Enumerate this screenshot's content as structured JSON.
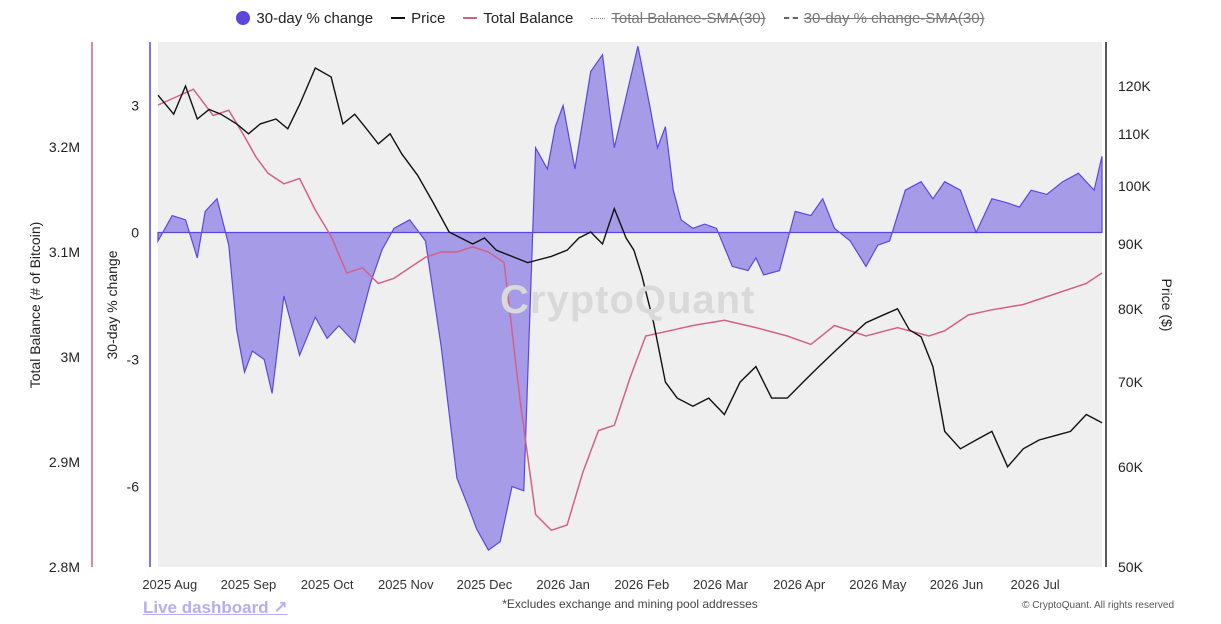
{
  "legend": [
    {
      "label": "30-day % change",
      "marker": "dot",
      "color": "#5b47e0",
      "active": true
    },
    {
      "label": "Price",
      "marker": "line",
      "color": "#111111",
      "active": true
    },
    {
      "label": "Total Balance",
      "marker": "line",
      "color": "#d4608a",
      "active": true
    },
    {
      "label": "Total Balance-SMA(30)",
      "marker": "dotted",
      "color": "#888888",
      "active": false
    },
    {
      "label": "30-day % change-SMA(30)",
      "marker": "dashed",
      "color": "#666666",
      "active": false
    }
  ],
  "footer": {
    "live_dashboard": "Live dashboard ↗",
    "note": "*Excludes exchange and mining pool addresses",
    "copyright": "© CryptoQuant. All rights reserved"
  },
  "watermark": "CryptoQuant",
  "chart_data": {
    "type": "line",
    "grid": false,
    "x_ticks": [
      "2025 Aug",
      "2025 Sep",
      "2025 Oct",
      "2025 Nov",
      "2025 Dec",
      "2026 Jan",
      "2026 Feb",
      "2026 Mar",
      "2026 Apr",
      "2026 May",
      "2026 Jun",
      "2026 Jul"
    ],
    "axes": {
      "balance": {
        "label": "Total Balance (# of Bitcoin)",
        "range": [
          2800000,
          3300000
        ],
        "ticks": [
          "2.8M",
          "2.9M",
          "3M",
          "3.1M",
          "3.2M"
        ],
        "tick_values": [
          2800000,
          2900000,
          3000000,
          3100000,
          3200000
        ]
      },
      "pct": {
        "label": "30-day % change",
        "range": [
          -7.9,
          4.5
        ],
        "ticks": [
          "-6",
          "-3",
          "0",
          "3"
        ],
        "tick_values": [
          -6,
          -3,
          0,
          3
        ]
      },
      "price": {
        "label": "Price ($)",
        "scale": "log",
        "range": [
          50000,
          130000
        ],
        "ticks": [
          "50K",
          "60K",
          "70K",
          "80K",
          "90K",
          "100K",
          "110K",
          "120K"
        ],
        "tick_values": [
          50000,
          60000,
          70000,
          80000,
          90000,
          100000,
          110000,
          120000
        ]
      }
    },
    "x_range": [
      0,
      12
    ],
    "series": [
      {
        "name": "30-day % change",
        "kind": "area",
        "color": "#5b47e0",
        "x": [
          0,
          0.18,
          0.35,
          0.5,
          0.6,
          0.75,
          0.9,
          1.0,
          1.1,
          1.2,
          1.35,
          1.45,
          1.6,
          1.8,
          2.0,
          2.15,
          2.3,
          2.5,
          2.7,
          2.85,
          3.0,
          3.2,
          3.4,
          3.6,
          3.8,
          3.95,
          4.05,
          4.2,
          4.35,
          4.5,
          4.65,
          4.8,
          4.95,
          5.05,
          5.15,
          5.3,
          5.5,
          5.65,
          5.8,
          5.95,
          6.1,
          6.25,
          6.35,
          6.45,
          6.55,
          6.65,
          6.8,
          6.95,
          7.1,
          7.3,
          7.5,
          7.6,
          7.7,
          7.9,
          8.1,
          8.3,
          8.45,
          8.6,
          8.8,
          9.0,
          9.15,
          9.3,
          9.5,
          9.7,
          9.85,
          10.0,
          10.2,
          10.4,
          10.6,
          10.8,
          10.95,
          11.1,
          11.3,
          11.5,
          11.7,
          11.9,
          12.0
        ],
        "y": [
          -0.2,
          0.4,
          0.3,
          -0.6,
          0.5,
          0.8,
          -0.3,
          -2.3,
          -3.3,
          -2.8,
          -3.0,
          -3.8,
          -1.5,
          -2.9,
          -2.0,
          -2.5,
          -2.2,
          -2.6,
          -1.2,
          -0.4,
          0.1,
          0.3,
          -0.2,
          -2.7,
          -5.8,
          -6.5,
          -7.0,
          -7.5,
          -7.3,
          -6.0,
          -6.1,
          2.0,
          1.5,
          2.5,
          3.0,
          1.5,
          3.8,
          4.2,
          2.0,
          3.2,
          4.4,
          3.0,
          2.0,
          2.5,
          1.0,
          0.3,
          0.1,
          0.2,
          0.1,
          -0.8,
          -0.9,
          -0.6,
          -1.0,
          -0.9,
          0.5,
          0.4,
          0.8,
          0.1,
          -0.2,
          -0.8,
          -0.3,
          -0.2,
          1.0,
          1.2,
          0.8,
          1.2,
          1.0,
          0.0,
          0.8,
          0.7,
          0.6,
          1.0,
          0.9,
          1.2,
          1.4,
          1.0,
          1.8
        ]
      },
      {
        "name": "Total Balance",
        "kind": "line",
        "axis": "balance",
        "color": "#d4608a",
        "x": [
          0,
          0.3,
          0.45,
          0.7,
          0.9,
          1.1,
          1.25,
          1.4,
          1.6,
          1.8,
          2.0,
          2.2,
          2.4,
          2.6,
          2.8,
          3.0,
          3.2,
          3.4,
          3.6,
          3.8,
          4.0,
          4.2,
          4.4,
          4.6,
          4.8,
          5.0,
          5.2,
          5.4,
          5.6,
          5.8,
          6.0,
          6.2,
          6.5,
          6.8,
          7.2,
          7.6,
          8.0,
          8.3,
          8.6,
          9.0,
          9.4,
          9.8,
          10.0,
          10.3,
          10.6,
          11.0,
          11.4,
          11.8,
          12.0
        ],
        "y": [
          3240000,
          3250000,
          3255000,
          3230000,
          3235000,
          3210000,
          3190000,
          3175000,
          3165000,
          3170000,
          3140000,
          3115000,
          3080000,
          3085000,
          3070000,
          3075000,
          3085000,
          3095000,
          3100000,
          3100000,
          3105000,
          3100000,
          3090000,
          2960000,
          2850000,
          2835000,
          2840000,
          2890000,
          2930000,
          2935000,
          2980000,
          3020000,
          3025000,
          3030000,
          3035000,
          3028000,
          3020000,
          3012000,
          3030000,
          3020000,
          3028000,
          3020000,
          3025000,
          3040000,
          3045000,
          3050000,
          3060000,
          3070000,
          3080000
        ]
      },
      {
        "name": "Price",
        "kind": "line",
        "axis": "price",
        "color": "#111111",
        "x": [
          0,
          0.2,
          0.35,
          0.5,
          0.65,
          0.8,
          1.0,
          1.15,
          1.3,
          1.5,
          1.65,
          1.8,
          2.0,
          2.2,
          2.35,
          2.5,
          2.65,
          2.8,
          2.95,
          3.1,
          3.3,
          3.5,
          3.7,
          3.85,
          4.0,
          4.15,
          4.3,
          4.5,
          4.7,
          4.85,
          5.0,
          5.2,
          5.35,
          5.5,
          5.65,
          5.8,
          5.95,
          6.05,
          6.15,
          6.3,
          6.45,
          6.6,
          6.8,
          7.0,
          7.2,
          7.4,
          7.6,
          7.8,
          8.0,
          8.2,
          8.4,
          8.6,
          8.8,
          9.0,
          9.2,
          9.4,
          9.55,
          9.7,
          9.85,
          10.0,
          10.2,
          10.4,
          10.6,
          10.8,
          11.0,
          11.2,
          11.4,
          11.6,
          11.8,
          12.0
        ],
        "y": [
          118000,
          114000,
          120000,
          113000,
          115000,
          114000,
          112000,
          110000,
          112000,
          113000,
          111000,
          116000,
          124000,
          122000,
          112000,
          114000,
          111000,
          108000,
          110000,
          106000,
          102000,
          97000,
          92000,
          91000,
          90000,
          91000,
          89000,
          88000,
          87000,
          87500,
          88000,
          89000,
          91000,
          92000,
          90000,
          96000,
          91000,
          89000,
          85000,
          78000,
          70000,
          68000,
          67000,
          68000,
          66000,
          70000,
          72000,
          68000,
          68000,
          70000,
          72000,
          74000,
          76000,
          78000,
          79000,
          80000,
          77000,
          76000,
          72000,
          64000,
          62000,
          63000,
          64000,
          60000,
          62000,
          63000,
          63500,
          64000,
          66000,
          65000
        ]
      }
    ]
  }
}
